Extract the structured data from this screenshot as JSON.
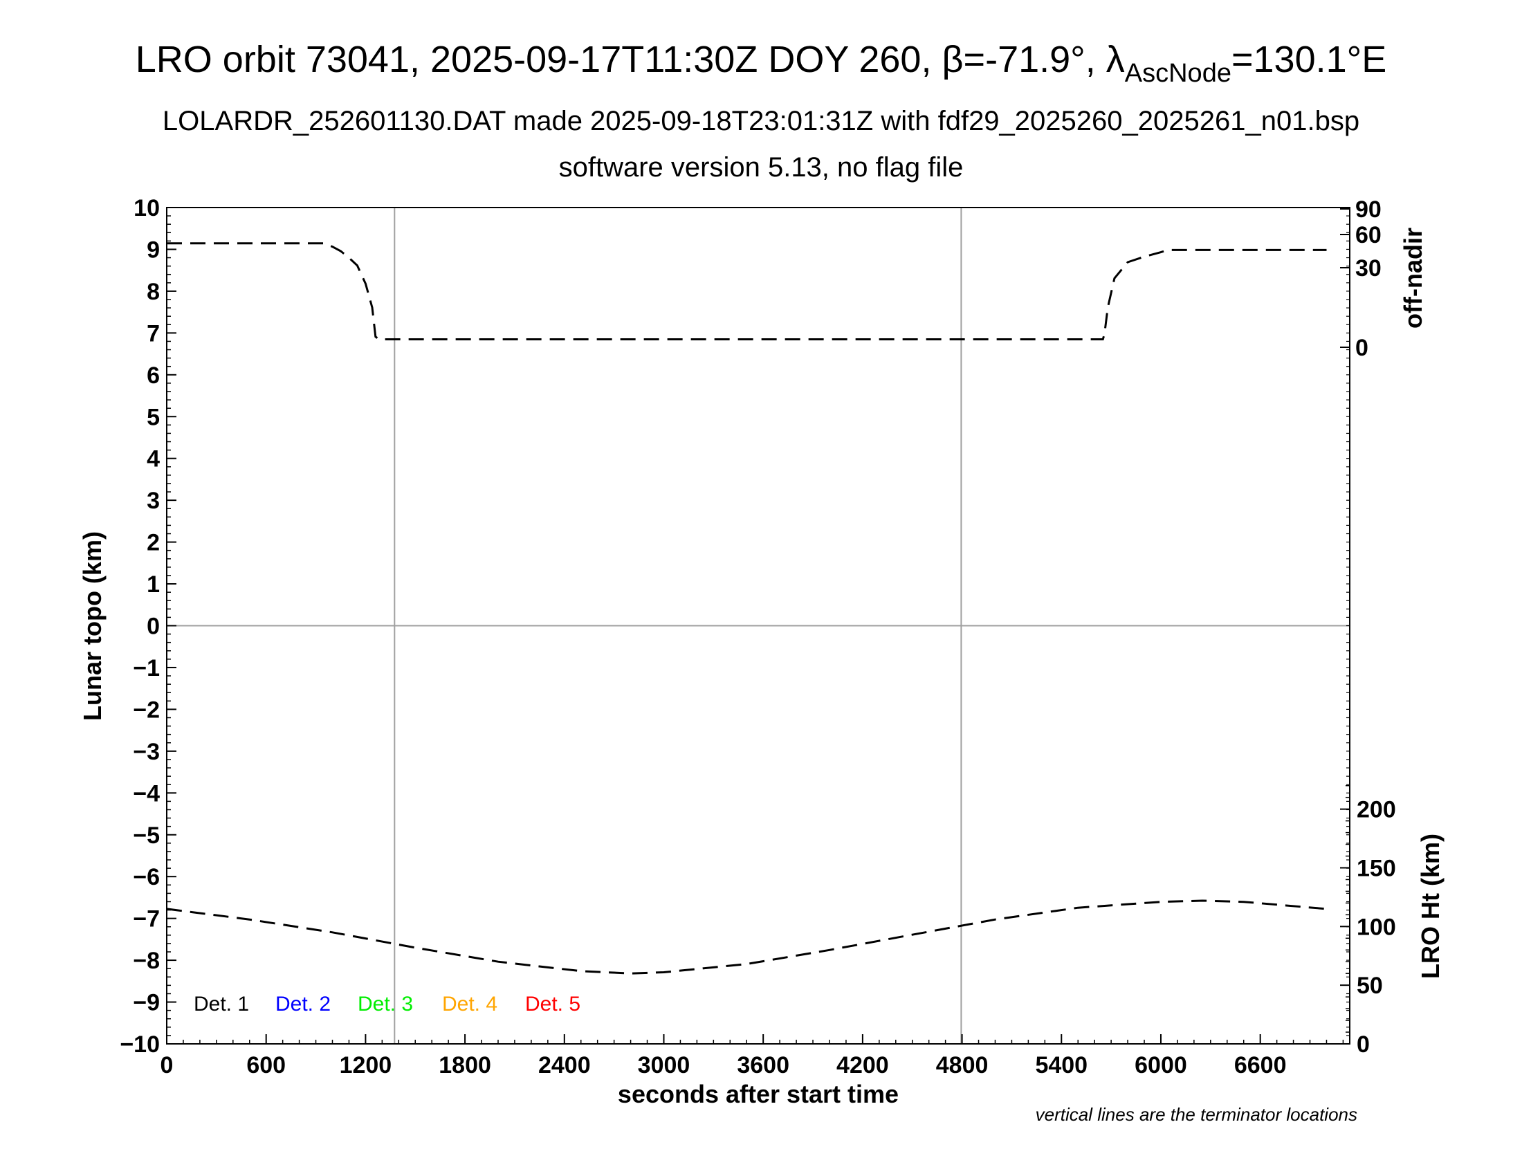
{
  "title": {
    "prefix": "LRO orbit 73041, 2025-09-17T11:30Z DOY 260, ",
    "beta_symbol": "β",
    "beta_value": "=-71.9°, ",
    "lambda_symbol": "λ",
    "lambda_sub": "AscNode",
    "lambda_value": "=130.1°E"
  },
  "subtitle1": "LOLARDR_252601130.DAT made 2025-09-18T23:01:31Z with fdf29_2025260_2025261_n01.bsp",
  "subtitle2": "software version 5.13, no flag file",
  "note": "vertical lines are the terminator locations",
  "chart_data": {
    "type": "line",
    "xlabel": "seconds after start time",
    "ylabel_left": "Lunar topo (km)",
    "ylabel_right_top": "off-nadir",
    "ylabel_right_bottom": "LRO Ht (km)",
    "xlim": [
      0,
      7140
    ],
    "ylim_left": [
      -10,
      10
    ],
    "x_ticks": [
      0,
      600,
      1200,
      1800,
      2400,
      3000,
      3600,
      4200,
      4800,
      5400,
      6000,
      6600
    ],
    "y_ticks_left": [
      10,
      9,
      8,
      7,
      6,
      5,
      4,
      3,
      2,
      1,
      0,
      -1,
      -2,
      -3,
      -4,
      -5,
      -6,
      -7,
      -8,
      -9,
      -10
    ],
    "y_ticks_left_labels": [
      "10",
      "9",
      "8",
      "7",
      "6",
      "5",
      "4",
      "3",
      "2",
      "1",
      "0",
      "−1",
      "−2",
      "−3",
      "−4",
      "−5",
      "−6",
      "−7",
      "−8",
      "−9",
      "−10"
    ],
    "right_top_axis": {
      "ticks": [
        90,
        60,
        30,
        0
      ]
    },
    "right_bottom_axis": {
      "range": [
        0,
        300
      ],
      "ticks": [
        200,
        150,
        100,
        50,
        0
      ]
    },
    "terminator_lines_x": [
      1375,
      4795
    ],
    "zero_line_y": 0,
    "legend": [
      {
        "label": "Det. 1",
        "color": "#000000"
      },
      {
        "label": "Det. 2",
        "color": "#0000ff"
      },
      {
        "label": "Det. 3",
        "color": "#00ee00"
      },
      {
        "label": "Det. 4",
        "color": "#ffa500"
      },
      {
        "label": "Det. 5",
        "color": "#ff0000"
      }
    ],
    "series": [
      {
        "name": "off-nadir",
        "axis": "right_top",
        "style": "dashed",
        "color": "#000000",
        "x": [
          0,
          950,
          1000,
          1050,
          1100,
          1150,
          1200,
          1240,
          1260,
          1280,
          1300,
          1400,
          2400,
          3600,
          4800,
          5650,
          5660,
          5680,
          5720,
          5800,
          5900,
          6000,
          6040,
          6500,
          7000
        ],
        "y": [
          52,
          52,
          49,
          45,
          39,
          32,
          24,
          15,
          4,
          3,
          3,
          3,
          3,
          3,
          3,
          3,
          5,
          15,
          26,
          35,
          40,
          44,
          46,
          46,
          46
        ]
      },
      {
        "name": "LRO Ht",
        "axis": "right_bottom",
        "style": "dashed",
        "color": "#000000",
        "x": [
          0,
          500,
          1000,
          1500,
          2000,
          2500,
          2800,
          3000,
          3500,
          4000,
          4500,
          5000,
          5500,
          6000,
          6250,
          6500,
          7000
        ],
        "y": [
          115,
          106,
          95,
          82,
          70,
          62,
          60,
          61,
          68,
          80,
          93,
          106,
          116,
          121,
          122,
          121,
          115
        ]
      }
    ]
  }
}
